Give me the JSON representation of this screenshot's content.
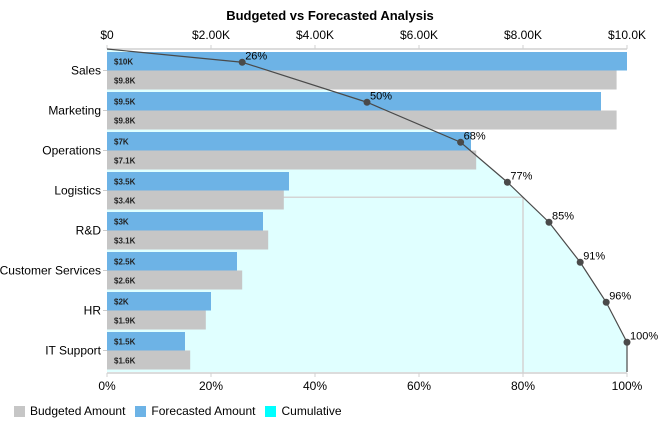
{
  "chart_data": {
    "type": "bar",
    "title": "Budgeted vs Forecasted Analysis",
    "orientation": "horizontal",
    "categories": [
      "Sales",
      "Marketing",
      "Operations",
      "Logistics",
      "R&D",
      "Customer Services",
      "HR",
      "IT Support"
    ],
    "series": [
      {
        "name": "Forecasted Amount",
        "color": "#6db3e6",
        "values": [
          10000,
          9500,
          7000,
          3500,
          3000,
          2500,
          2000,
          1500
        ],
        "labels": [
          "$10K",
          "$9.5K",
          "$7K",
          "$3.5K",
          "$3K",
          "$2.5K",
          "$2K",
          "$1.5K"
        ]
      },
      {
        "name": "Budgeted Amount",
        "color": "#c6c6c6",
        "values": [
          9800,
          9800,
          7100,
          3400,
          3100,
          2600,
          1900,
          1600
        ],
        "labels": [
          "$9.8K",
          "$9.8K",
          "$7.1K",
          "$3.4K",
          "$3.1K",
          "$2.6K",
          "$1.9K",
          "$1.6K"
        ]
      }
    ],
    "cumulative": {
      "name": "Cumulative",
      "color": "#00ffff",
      "area_color": "#e0ffff",
      "line_color": "#4a4a4a",
      "values": [
        26,
        50,
        68,
        77,
        85,
        91,
        96,
        100
      ],
      "labels": [
        "26%",
        "50%",
        "68%",
        "77%",
        "85%",
        "91%",
        "96%",
        "100%"
      ],
      "reference_percent": 80
    },
    "x_top_axis": {
      "range": [
        0,
        10000
      ],
      "ticks": [
        0,
        2000,
        4000,
        6000,
        8000,
        10000
      ],
      "tick_labels": [
        "$0",
        "$2.00K",
        "$4.00K",
        "$6.00K",
        "$8.00K",
        "$10.0K"
      ]
    },
    "x_bottom_axis": {
      "range": [
        0,
        100
      ],
      "ticks": [
        0,
        20,
        40,
        60,
        80,
        100
      ],
      "tick_labels": [
        "0%",
        "20%",
        "40%",
        "60%",
        "80%",
        "100%"
      ]
    },
    "legend": {
      "position": "bottom-left",
      "items": [
        {
          "label": "Budgeted Amount",
          "color": "#c6c6c6"
        },
        {
          "label": "Forecasted Amount",
          "color": "#6db3e6"
        },
        {
          "label": "Cumulative",
          "color": "#00ffff"
        }
      ]
    },
    "grid": false
  }
}
